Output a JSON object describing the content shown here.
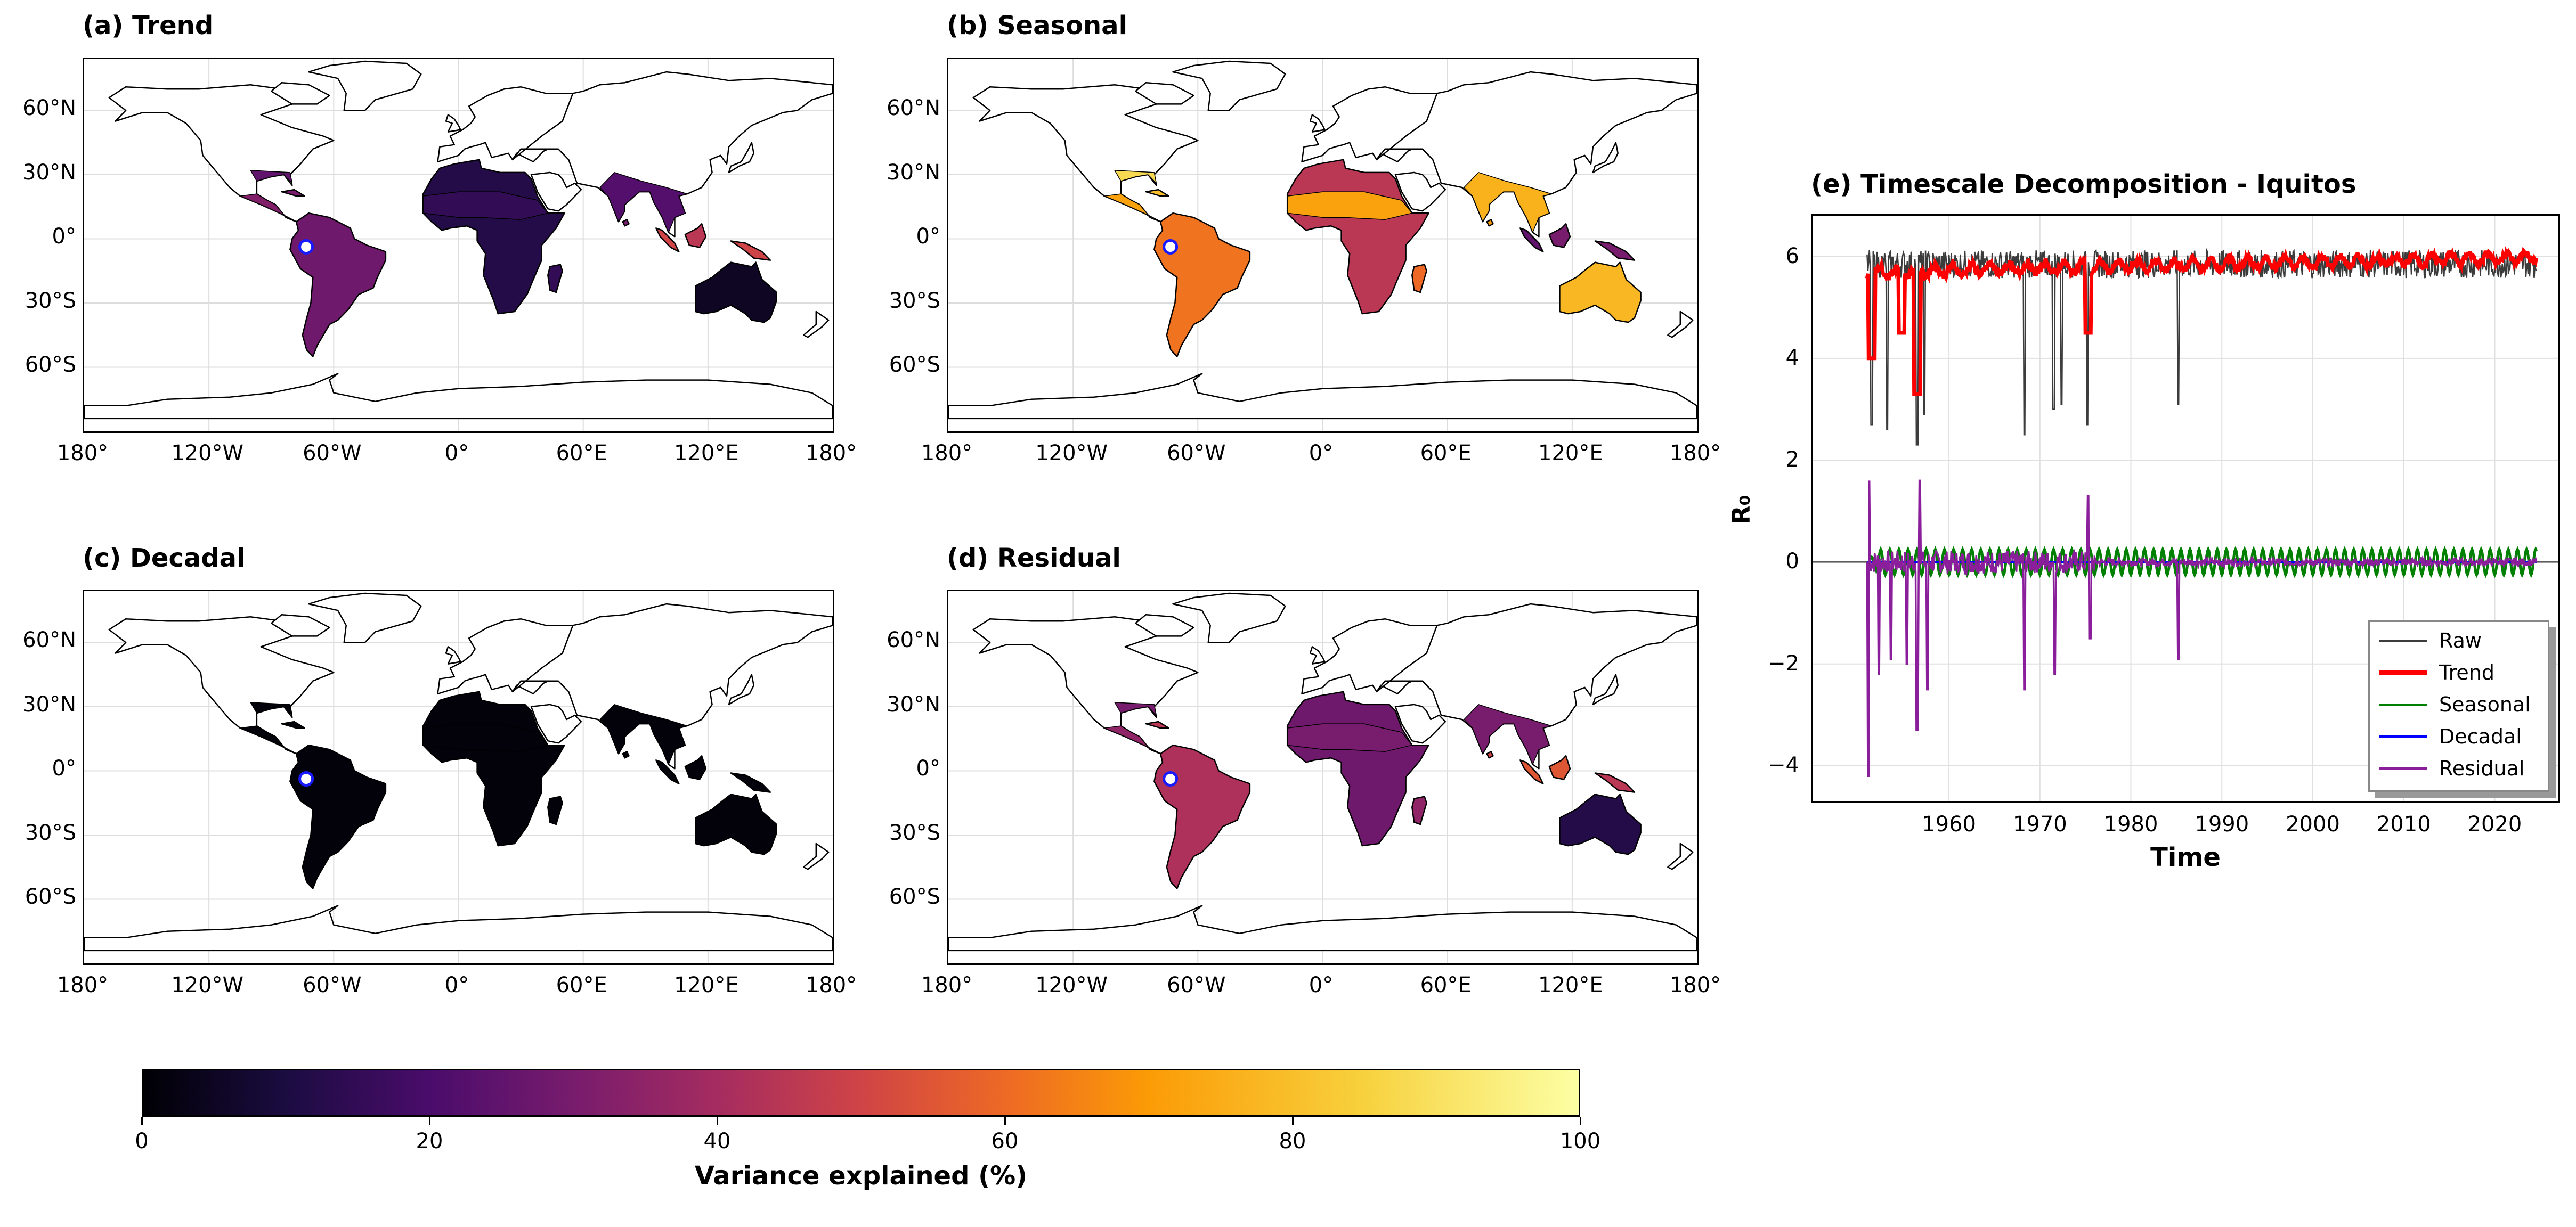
{
  "panels": {
    "a": {
      "title": "(a) Trend"
    },
    "b": {
      "title": "(b) Seasonal"
    },
    "c": {
      "title": "(c) Decadal"
    },
    "d": {
      "title": "(d) Residual"
    }
  },
  "map_axes": {
    "lat_ticks": [
      "60°N",
      "30°N",
      "0°",
      "30°S",
      "60°S"
    ],
    "lon_ticks": [
      "180°",
      "120°W",
      "60°W",
      "0°",
      "60°E",
      "120°E",
      "180°"
    ]
  },
  "colorbar": {
    "label": "Variance explained (%)",
    "ticks": [
      "0",
      "20",
      "40",
      "60",
      "80",
      "100"
    ],
    "colormap": "inferno"
  },
  "marker": {
    "location": "Iquitos",
    "lon": -73.25,
    "lat": -3.75
  },
  "chart_data": {
    "type": "line",
    "title": "(e) Timescale Decomposition - Iquitos",
    "xlabel": "Time",
    "ylabel": "R₀",
    "xlim": [
      1945,
      2027
    ],
    "ylim": [
      -4.7,
      6.8
    ],
    "x_ticks": [
      "1960",
      "1970",
      "1980",
      "1990",
      "2000",
      "2010",
      "2020"
    ],
    "y_ticks": [
      "6",
      "4",
      "2",
      "0",
      "−2",
      "−4"
    ],
    "grid": true,
    "legend_position": "lower-right",
    "series": [
      {
        "name": "Raw",
        "color": "#3c3c3c",
        "mean": 5.85,
        "dips": [
          [
            1951.5,
            2.7
          ],
          [
            1953.2,
            2.6
          ],
          [
            1956.5,
            2.3
          ],
          [
            1957.3,
            2.9
          ],
          [
            1968.3,
            2.5
          ],
          [
            1971.5,
            3.0
          ],
          [
            1972.4,
            3.1
          ],
          [
            1975.2,
            2.7
          ],
          [
            1985.2,
            3.1
          ]
        ]
      },
      {
        "name": "Trend",
        "color": "#ff0000",
        "mean": 5.85,
        "dips": [
          [
            1951.5,
            4.0
          ],
          [
            1954.8,
            4.5
          ],
          [
            1956.5,
            3.3
          ],
          [
            1975.3,
            4.5
          ]
        ]
      },
      {
        "name": "Seasonal",
        "color": "#008000",
        "amplitude": 0.25
      },
      {
        "name": "Decadal",
        "color": "#0000ff",
        "value": 0.0
      },
      {
        "name": "Residual",
        "color": "#8b1e9b",
        "spikes": [
          [
            1951.1,
            -4.2
          ],
          [
            1951.2,
            1.6
          ],
          [
            1952.3,
            -2.2
          ],
          [
            1953.6,
            -1.9
          ],
          [
            1955.4,
            -2.0
          ],
          [
            1956.5,
            -3.3
          ],
          [
            1956.8,
            1.6
          ],
          [
            1957.6,
            -2.5
          ],
          [
            1968.3,
            -2.5
          ],
          [
            1971.6,
            -2.2
          ],
          [
            1975.3,
            1.3
          ],
          [
            1975.5,
            -1.5
          ],
          [
            1985.2,
            -1.9
          ]
        ]
      }
    ]
  }
}
